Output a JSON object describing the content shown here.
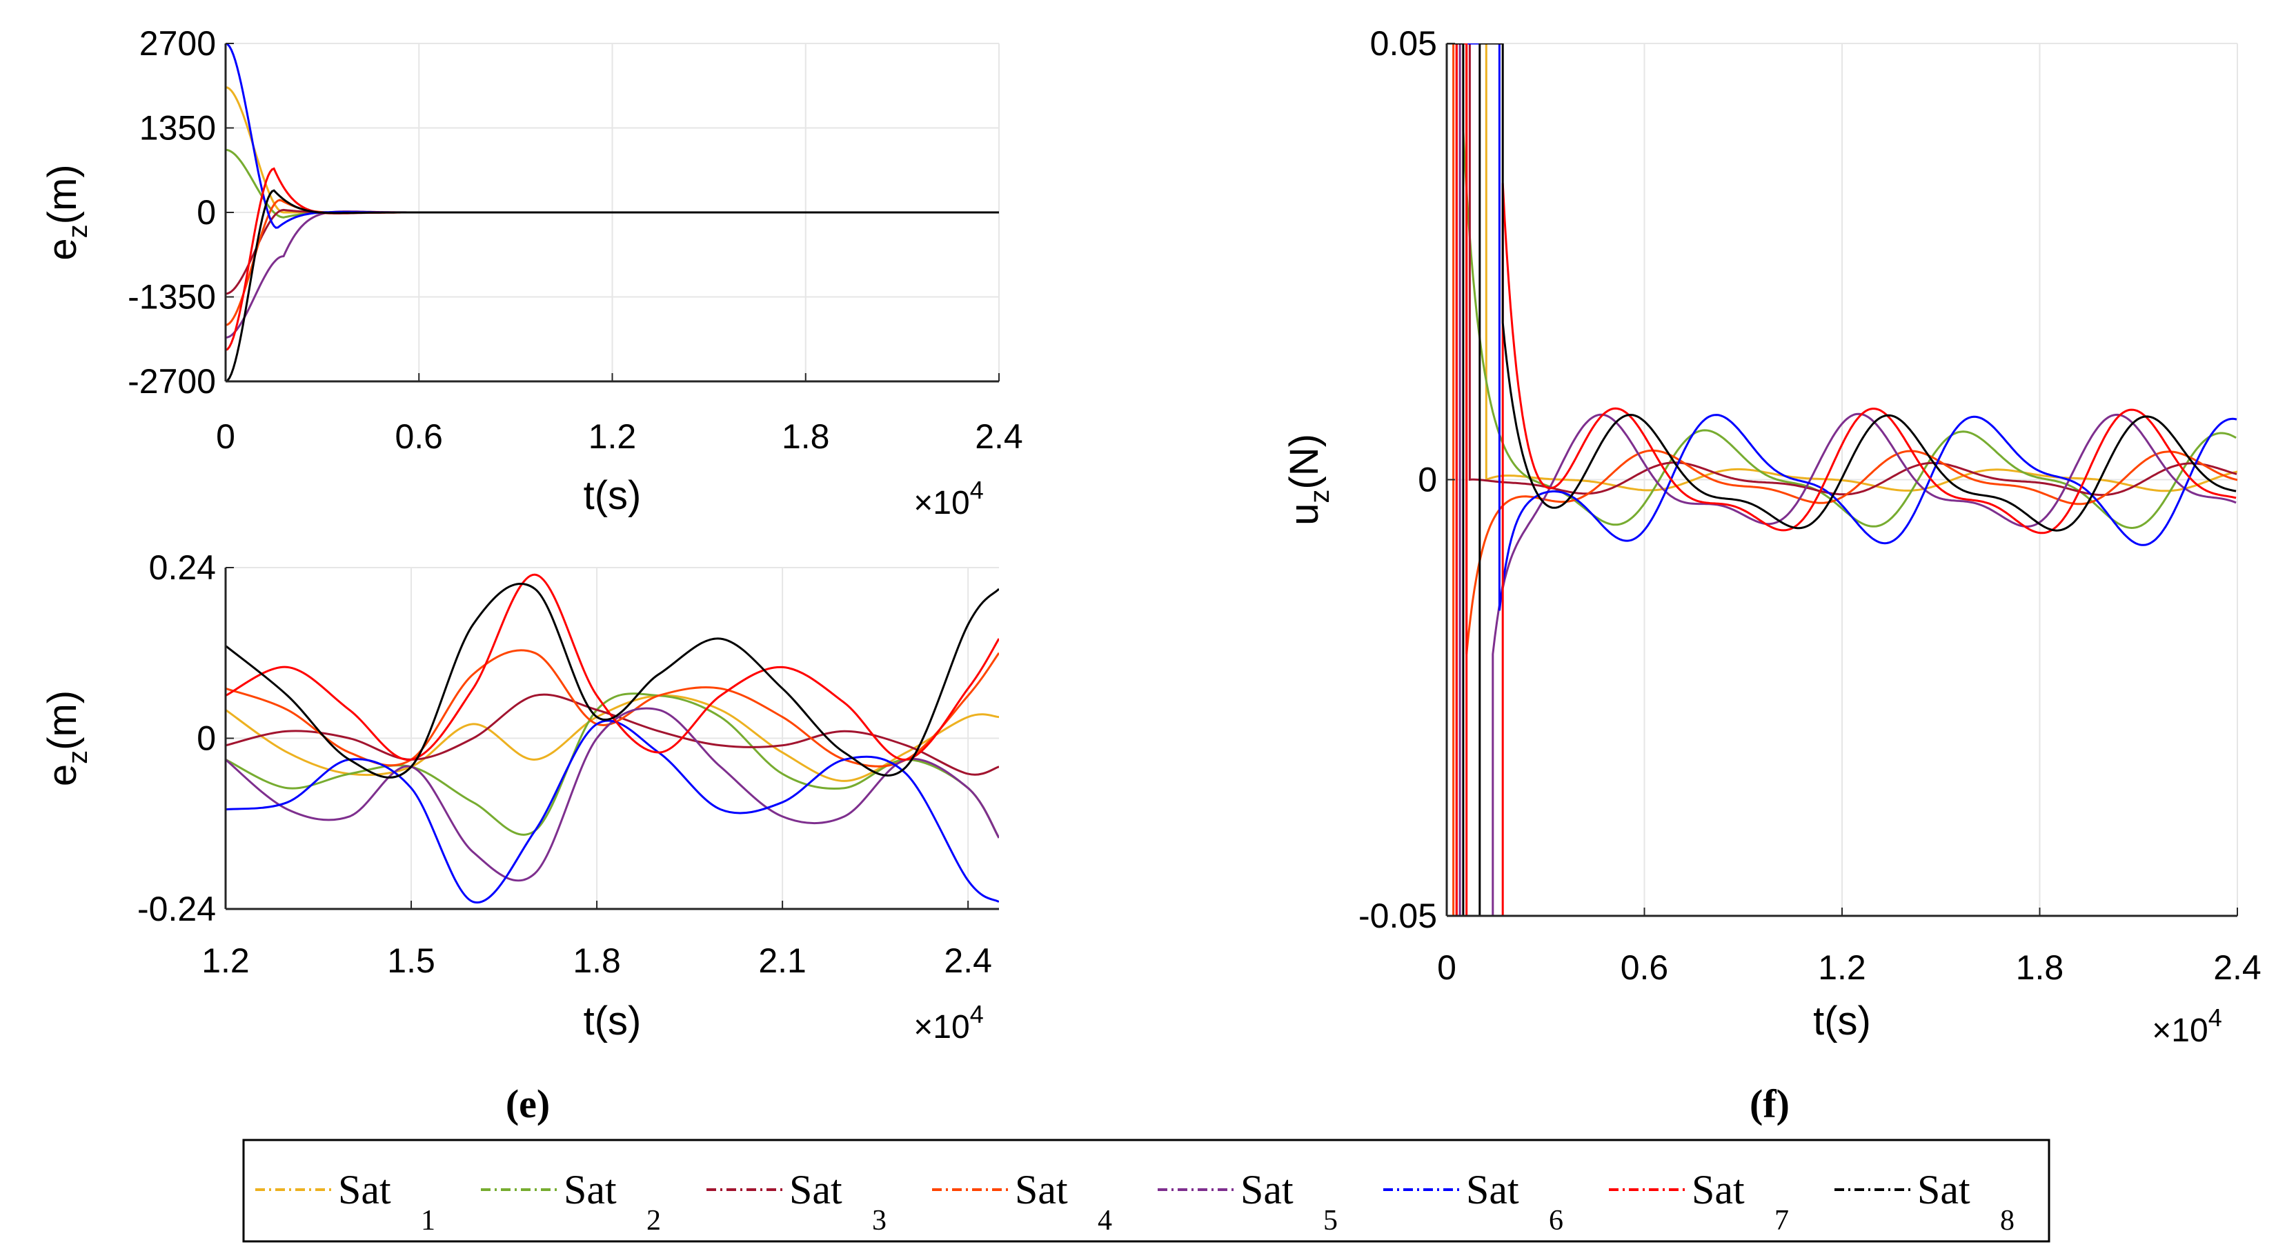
{
  "chart_data": [
    {
      "id": "top_left",
      "type": "line",
      "xlabel": "t(s)",
      "ylabel_main": "e",
      "ylabel_sub": "z",
      "ylabel_unit": "(m)",
      "xlim": [
        0,
        24000
      ],
      "ylim": [
        -2700,
        2700
      ],
      "x_multiplier_base": "×10",
      "x_multiplier_exp": "4",
      "xticks": [
        0,
        6000,
        12000,
        18000,
        24000
      ],
      "xtick_labels": [
        "0",
        "0.6",
        "1.2",
        "1.8",
        "2.4"
      ],
      "yticks": [
        2700,
        1350,
        0,
        -1350,
        -2700
      ],
      "ytick_labels": [
        "2700",
        "1350",
        "0",
        "-1350",
        "-2700"
      ],
      "grid": true,
      "series": [
        {
          "name": "Sat 1",
          "initial": 2000,
          "peak_time": 1800,
          "peak": 0,
          "decay": 700
        },
        {
          "name": "Sat 2",
          "initial": 1000,
          "peak_time": 1800,
          "peak": -80,
          "decay": 700
        },
        {
          "name": "Sat 3",
          "initial": -1300,
          "peak_time": 1800,
          "peak": 40,
          "decay": 700
        },
        {
          "name": "Sat 4",
          "initial": -1800,
          "peak_time": 1700,
          "peak": 200,
          "decay": 700
        },
        {
          "name": "Sat 5",
          "initial": -2000,
          "peak_time": 1800,
          "peak": -700,
          "decay": 600
        },
        {
          "name": "Sat 6",
          "initial": 2700,
          "peak_time": 1600,
          "peak": -250,
          "decay": 600
        },
        {
          "name": "Sat 7",
          "initial": -2200,
          "peak_time": 1500,
          "peak": 700,
          "decay": 600
        },
        {
          "name": "Sat 8",
          "initial": -2700,
          "peak_time": 1500,
          "peak": 350,
          "decay": 650
        }
      ]
    },
    {
      "id": "bottom_left",
      "type": "line",
      "xlabel": "t(s)",
      "ylabel_main": "e",
      "ylabel_sub": "z",
      "ylabel_unit": "(m)",
      "xlim": [
        12000,
        24500
      ],
      "ylim": [
        -0.24,
        0.24
      ],
      "x_multiplier_base": "×10",
      "x_multiplier_exp": "4",
      "xticks": [
        12000,
        15000,
        18000,
        21000,
        24000
      ],
      "xtick_labels": [
        "1.2",
        "1.5",
        "1.8",
        "2.1",
        "2.4"
      ],
      "yticks": [
        0.24,
        0,
        -0.24
      ],
      "ytick_labels": [
        "0.24",
        "0",
        "-0.24"
      ],
      "grid": true,
      "series": [
        {
          "name": "Sat 1",
          "x": [
            12000,
            13000,
            14000,
            15000,
            16000,
            17000,
            18000,
            19000,
            20000,
            21000,
            22000,
            23000,
            24000,
            24500
          ],
          "y": [
            0.04,
            -0.02,
            -0.05,
            -0.04,
            0.02,
            -0.03,
            0.03,
            0.06,
            0.04,
            -0.02,
            -0.06,
            -0.02,
            0.03,
            0.03
          ]
        },
        {
          "name": "Sat 2",
          "x": [
            12000,
            13000,
            14000,
            15000,
            16000,
            17000,
            18000,
            19000,
            20000,
            21000,
            22000,
            23000,
            24000,
            24500
          ],
          "y": [
            -0.03,
            -0.07,
            -0.05,
            -0.04,
            -0.09,
            -0.13,
            0.04,
            0.06,
            0.03,
            -0.05,
            -0.07,
            -0.03,
            -0.07,
            -0.14
          ]
        },
        {
          "name": "Sat 3",
          "x": [
            12000,
            13000,
            14000,
            15000,
            16000,
            17000,
            18000,
            19000,
            20000,
            21000,
            22000,
            23000,
            24000,
            24500
          ],
          "y": [
            -0.01,
            0.01,
            0.0,
            -0.03,
            0.0,
            0.06,
            0.04,
            0.01,
            -0.01,
            -0.01,
            0.01,
            -0.01,
            -0.05,
            -0.04
          ]
        },
        {
          "name": "Sat 4",
          "x": [
            12000,
            13000,
            14000,
            15000,
            16000,
            17000,
            18000,
            19000,
            20000,
            21000,
            22000,
            23000,
            24000,
            24500
          ],
          "y": [
            0.07,
            0.04,
            -0.02,
            -0.03,
            0.09,
            0.12,
            0.02,
            0.06,
            0.07,
            0.03,
            -0.03,
            -0.03,
            0.06,
            0.12
          ]
        },
        {
          "name": "Sat 5",
          "x": [
            12000,
            13000,
            14000,
            15000,
            16000,
            17000,
            18000,
            19000,
            20000,
            21000,
            22000,
            23000,
            24000,
            24500
          ],
          "y": [
            -0.03,
            -0.1,
            -0.11,
            -0.04,
            -0.16,
            -0.19,
            0.0,
            0.04,
            -0.04,
            -0.11,
            -0.11,
            -0.03,
            -0.07,
            -0.14
          ]
        },
        {
          "name": "Sat 6",
          "x": [
            12000,
            13000,
            14000,
            15000,
            16000,
            17000,
            18000,
            19000,
            20000,
            21000,
            22000,
            23000,
            24000,
            24500
          ],
          "y": [
            -0.1,
            -0.09,
            -0.03,
            -0.07,
            -0.23,
            -0.13,
            0.02,
            -0.02,
            -0.1,
            -0.09,
            -0.03,
            -0.05,
            -0.2,
            -0.23
          ]
        },
        {
          "name": "Sat 7",
          "x": [
            12000,
            13000,
            14000,
            15000,
            16000,
            17000,
            18000,
            19000,
            20000,
            21000,
            22000,
            23000,
            24000,
            24500
          ],
          "y": [
            0.06,
            0.1,
            0.04,
            -0.03,
            0.07,
            0.23,
            0.06,
            -0.02,
            0.06,
            0.1,
            0.05,
            -0.03,
            0.07,
            0.14
          ]
        },
        {
          "name": "Sat 8",
          "x": [
            12000,
            13000,
            14000,
            15000,
            16000,
            17000,
            18000,
            19000,
            20000,
            21000,
            22000,
            23000,
            24000,
            24500
          ],
          "y": [
            0.13,
            0.06,
            -0.03,
            -0.04,
            0.16,
            0.21,
            0.03,
            0.09,
            0.14,
            0.07,
            -0.02,
            -0.04,
            0.16,
            0.21
          ]
        }
      ]
    },
    {
      "id": "right",
      "type": "line",
      "xlabel": "t(s)",
      "ylabel_main": "u",
      "ylabel_sub": "z",
      "ylabel_unit": "(N)",
      "xlim": [
        0,
        24000
      ],
      "ylim": [
        -0.05,
        0.05
      ],
      "x_multiplier_base": "×10",
      "x_multiplier_exp": "4",
      "xticks": [
        0,
        6000,
        12000,
        18000,
        24000
      ],
      "xtick_labels": [
        "0",
        "0.6",
        "1.2",
        "1.8",
        "2.4"
      ],
      "yticks": [
        0.05,
        0,
        -0.05
      ],
      "ytick_labels": [
        "0.05",
        "0",
        "-0.05"
      ],
      "grid": true,
      "saturation_limit": 0.05,
      "series": [
        {
          "name": "Sat 1",
          "switch_times": [
            0,
            1200
          ],
          "start_value": 0.05,
          "end_value": 0.0,
          "osc_amp": 0.001,
          "osc_phase": 0.3
        },
        {
          "name": "Sat 2",
          "switch_times": [
            0,
            500
          ],
          "start_value": 0.05,
          "end_value": 0.04,
          "osc_amp": 0.0045,
          "osc_phase": 1.2
        },
        {
          "name": "Sat 3",
          "switch_times": [
            0,
            300,
            700
          ],
          "start_value": -0.05,
          "end_value": 0.0,
          "osc_amp": 0.0015,
          "osc_phase": 2.0
        },
        {
          "name": "Sat 4",
          "switch_times": [
            0,
            200,
            600
          ],
          "start_value": -0.05,
          "end_value": -0.02,
          "osc_amp": 0.0025,
          "osc_phase": 2.6
        },
        {
          "name": "Sat 5",
          "switch_times": [
            0,
            400,
            1400
          ],
          "start_value": 0.05,
          "end_value": -0.02,
          "osc_amp": 0.0055,
          "osc_phase": 4.0
        },
        {
          "name": "Sat 6",
          "switch_times": [
            0,
            1600
          ],
          "start_value": 0.05,
          "end_value": -0.015,
          "osc_amp": 0.006,
          "osc_phase": 0.9
        },
        {
          "name": "Sat 7",
          "switch_times": [
            0,
            300,
            600,
            1700
          ],
          "start_value": -0.05,
          "end_value": 0.034,
          "osc_amp": 0.006,
          "osc_phase": 3.6
        },
        {
          "name": "Sat 8",
          "switch_times": [
            0,
            500,
            1000,
            1700
          ],
          "start_value": 0.05,
          "end_value": 0.018,
          "osc_amp": 0.0055,
          "osc_phase": 3.2
        }
      ]
    }
  ],
  "captions": {
    "left": "(e)",
    "right": "(f)"
  },
  "legend": {
    "items": [
      {
        "label": "Sat",
        "index": "1",
        "color": "#EDB120"
      },
      {
        "label": "Sat",
        "index": "2",
        "color": "#77AC30"
      },
      {
        "label": "Sat",
        "index": "3",
        "color": "#A2142F"
      },
      {
        "label": "Sat",
        "index": "4",
        "color": "#FF4500"
      },
      {
        "label": "Sat",
        "index": "5",
        "color": "#7E2F8E"
      },
      {
        "label": "Sat",
        "index": "6",
        "color": "#0000FF"
      },
      {
        "label": "Sat",
        "index": "7",
        "color": "#FF0000"
      },
      {
        "label": "Sat",
        "index": "8",
        "color": "#000000"
      }
    ]
  }
}
